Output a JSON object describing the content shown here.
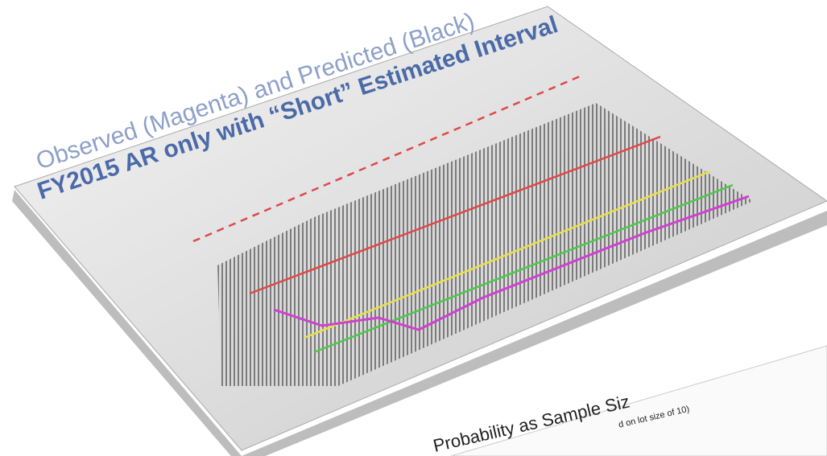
{
  "slide": {
    "title_line1": "Observed (Magenta) and Predicted (Black)",
    "title_line2": "FY2015 AR only with “Short” Estimated Interval"
  },
  "second_slide": {
    "title": "Probability as Sample Siz",
    "subtitle": "d on lot size of 10)"
  }
}
